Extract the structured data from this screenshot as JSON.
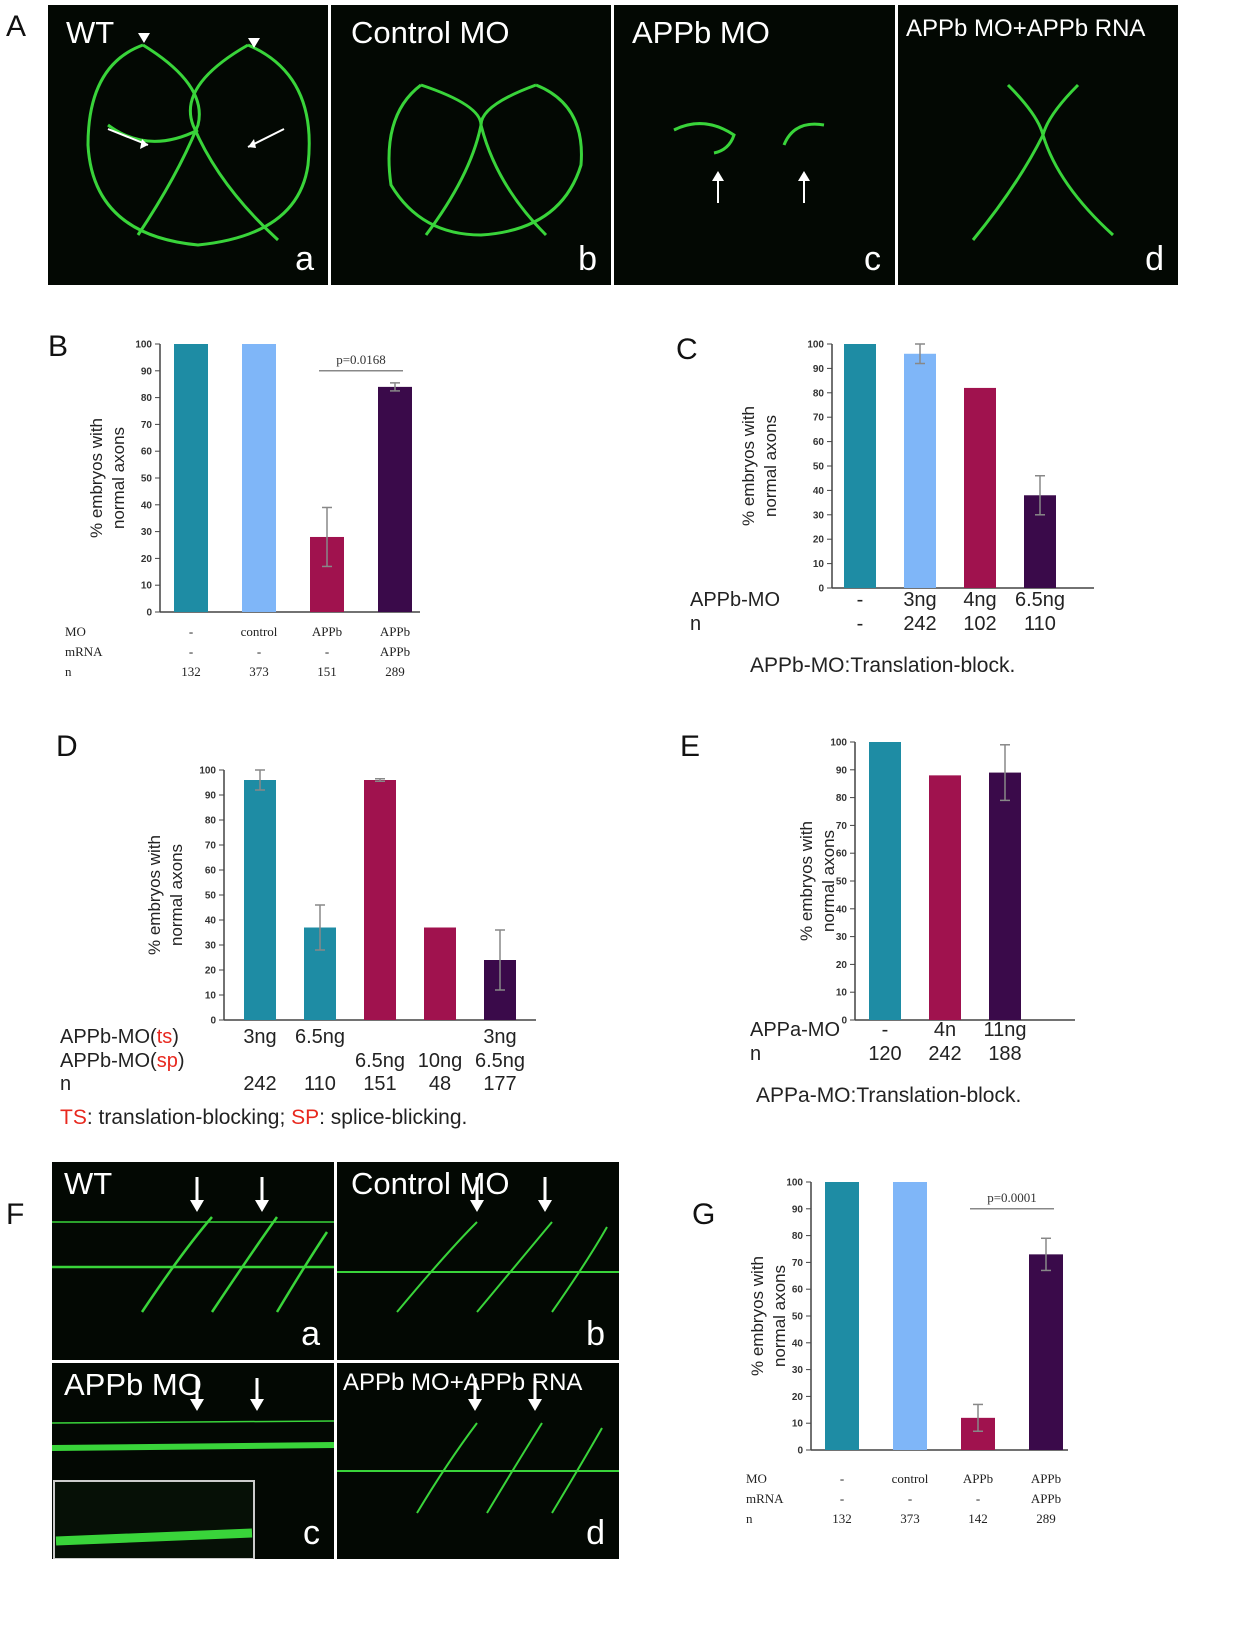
{
  "panels": {
    "A": {
      "letter": "A",
      "images": [
        {
          "title": "WT",
          "sub": "a"
        },
        {
          "title": "Control MO",
          "sub": "b"
        },
        {
          "title": "APPb MO",
          "sub": "c"
        },
        {
          "title": "APPb MO+APPb RNA",
          "sub": "d"
        }
      ]
    },
    "F": {
      "letter": "F",
      "images": [
        {
          "title": "WT",
          "sub": "a"
        },
        {
          "title": "Control MO",
          "sub": "b"
        },
        {
          "title": "APPb MO",
          "sub": "c"
        },
        {
          "title": "APPb MO+APPb RNA",
          "sub": "d"
        }
      ]
    }
  },
  "green": "#39d43a",
  "chart_data": [
    {
      "id": "B",
      "letter": "B",
      "type": "bar",
      "ylabel": [
        "% embryos with",
        "normal axons"
      ],
      "ylim": [
        0,
        100
      ],
      "yticks": [
        0,
        10,
        20,
        30,
        40,
        50,
        60,
        70,
        80,
        90,
        100
      ],
      "values": [
        100,
        100,
        28,
        84
      ],
      "errors": [
        0,
        0,
        11,
        1.5
      ],
      "colors": [
        "#1e8ca4",
        "#7fb6f8",
        "#a0124e",
        "#3a0a4a"
      ],
      "annotation": "p=0.0168",
      "rows": [
        {
          "label": "MO",
          "cells": [
            "-",
            "control",
            "APPb",
            "APPb"
          ]
        },
        {
          "label": "mRNA",
          "cells": [
            "-",
            "-",
            "-",
            "APPb"
          ]
        },
        {
          "label": "n",
          "cells": [
            "132",
            "373",
            "151",
            "289"
          ]
        }
      ]
    },
    {
      "id": "C",
      "letter": "C",
      "type": "bar",
      "ylabel": [
        "% embryos with",
        "normal axons"
      ],
      "ylim": [
        0,
        100
      ],
      "yticks": [
        0,
        10,
        20,
        30,
        40,
        50,
        60,
        70,
        80,
        90,
        100
      ],
      "values": [
        100,
        96,
        82,
        38
      ],
      "errors": [
        0,
        4,
        0,
        8
      ],
      "colors": [
        "#1e8ca4",
        "#7fb6f8",
        "#a0124e",
        "#3a0a4a"
      ],
      "rows": [
        {
          "label": "APPb-MO",
          "cells": [
            "-",
            "3ng",
            "4ng",
            "6.5ng"
          ]
        },
        {
          "label": "n",
          "cells": [
            "-",
            "242",
            "102",
            "110"
          ]
        }
      ],
      "caption": "APPb-MO:Translation-block."
    },
    {
      "id": "D",
      "letter": "D",
      "type": "bar",
      "ylabel": [
        "% embryos with",
        "normal axons"
      ],
      "ylim": [
        0,
        100
      ],
      "yticks": [
        0,
        10,
        20,
        30,
        40,
        50,
        60,
        70,
        80,
        90,
        100
      ],
      "values": [
        96,
        37,
        96,
        37,
        24
      ],
      "errors": [
        4,
        9,
        0.5,
        0,
        12
      ],
      "colors": [
        "#1e8ca4",
        "#1e8ca4",
        "#a0124e",
        "#a0124e",
        "#3a0a4a"
      ],
      "rows": [
        {
          "label": "APPb-MO(",
          "tag": "ts",
          "cells": [
            "3ng",
            "6.5ng",
            "",
            "",
            "3ng"
          ]
        },
        {
          "label": "APPb-MO(",
          "tag": "sp",
          "cells": [
            "",
            "",
            "6.5ng",
            "10ng",
            "6.5ng"
          ]
        },
        {
          "label": "n",
          "cells": [
            "242",
            "110",
            "151",
            "48",
            "177"
          ]
        }
      ],
      "legend": {
        "ts_key": "TS",
        "ts_text": ": translation-blocking; ",
        "sp_key": "SP",
        "sp_text": ": splice-blicking."
      }
    },
    {
      "id": "E",
      "letter": "E",
      "type": "bar",
      "ylabel": [
        "% embryos with",
        "normal axons"
      ],
      "ylim": [
        0,
        100
      ],
      "yticks": [
        0,
        10,
        20,
        30,
        40,
        50,
        60,
        70,
        80,
        90,
        100
      ],
      "values": [
        100,
        88,
        89
      ],
      "errors": [
        0,
        0,
        10
      ],
      "colors": [
        "#1e8ca4",
        "#a0124e",
        "#3a0a4a"
      ],
      "rows": [
        {
          "label": "APPa-MO",
          "cells": [
            "-",
            "4n",
            "11ng"
          ]
        },
        {
          "label": "n",
          "cells": [
            "120",
            "242",
            "188"
          ]
        }
      ],
      "caption": "APPa-MO:Translation-block."
    },
    {
      "id": "G",
      "letter": "G",
      "type": "bar",
      "ylabel": [
        "% embryos with",
        "normal axons"
      ],
      "ylim": [
        0,
        100
      ],
      "yticks": [
        0,
        10,
        20,
        30,
        40,
        50,
        60,
        70,
        80,
        90,
        100
      ],
      "values": [
        100,
        100,
        12,
        73
      ],
      "errors": [
        0,
        0,
        5,
        6
      ],
      "colors": [
        "#1e8ca4",
        "#7fb6f8",
        "#a0124e",
        "#3a0a4a"
      ],
      "annotation": "p=0.0001",
      "rows": [
        {
          "label": "MO",
          "cells": [
            "-",
            "control",
            "APPb",
            "APPb"
          ]
        },
        {
          "label": "mRNA",
          "cells": [
            "-",
            "-",
            "-",
            "APPb"
          ]
        },
        {
          "label": "n",
          "cells": [
            "132",
            "373",
            "142",
            "289"
          ]
        }
      ]
    }
  ]
}
